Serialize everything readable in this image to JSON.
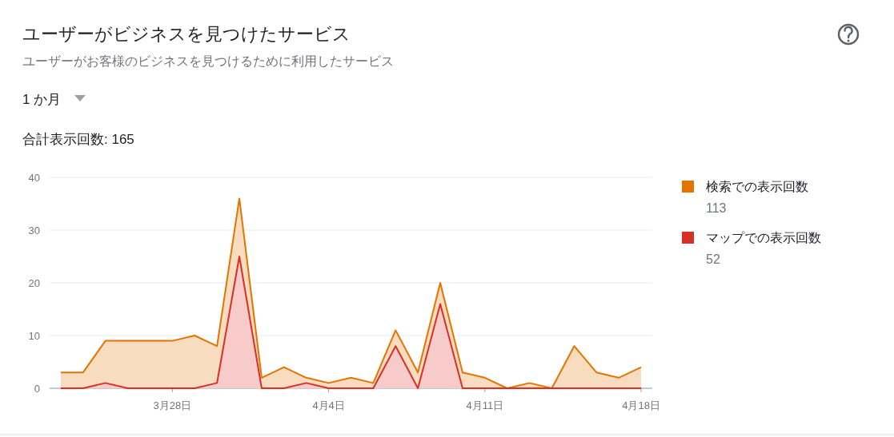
{
  "chart_data": {
    "type": "area",
    "title": "ユーザーがビジネスを見つけたサービス",
    "subtitle": "ユーザーがお客様のビジネスを見つけるために利用したサービス",
    "annotations": [
      "1 か月",
      "合計表示回数: 165",
      "113",
      "52"
    ],
    "categories": [
      null,
      null,
      null,
      null,
      null,
      "3月28日",
      null,
      null,
      null,
      null,
      null,
      null,
      "4月4日",
      null,
      null,
      null,
      null,
      null,
      null,
      "4月11日",
      null,
      null,
      null,
      null,
      null,
      null,
      "4月18日"
    ],
    "stacked": true,
    "series": [
      {
        "name": "マップでの表示回数",
        "color": "#d93025",
        "values": [
          0,
          0,
          1,
          0,
          0,
          0,
          0,
          1,
          25,
          0,
          0,
          1,
          0,
          0,
          0,
          8,
          0,
          16,
          0,
          0,
          0,
          0,
          0,
          0,
          0,
          0,
          0
        ]
      },
      {
        "name": "検索での表示回数",
        "color": "#e37400",
        "values": [
          3,
          3,
          8,
          9,
          9,
          9,
          10,
          7,
          11,
          2,
          4,
          1,
          1,
          2,
          1,
          3,
          3,
          4,
          3,
          2,
          0,
          1,
          0,
          8,
          3,
          2,
          4
        ]
      }
    ],
    "ylim": [
      0,
      40
    ],
    "yticks": [
      0,
      10,
      20,
      30,
      40
    ],
    "grid": "y",
    "legend": "right"
  }
}
